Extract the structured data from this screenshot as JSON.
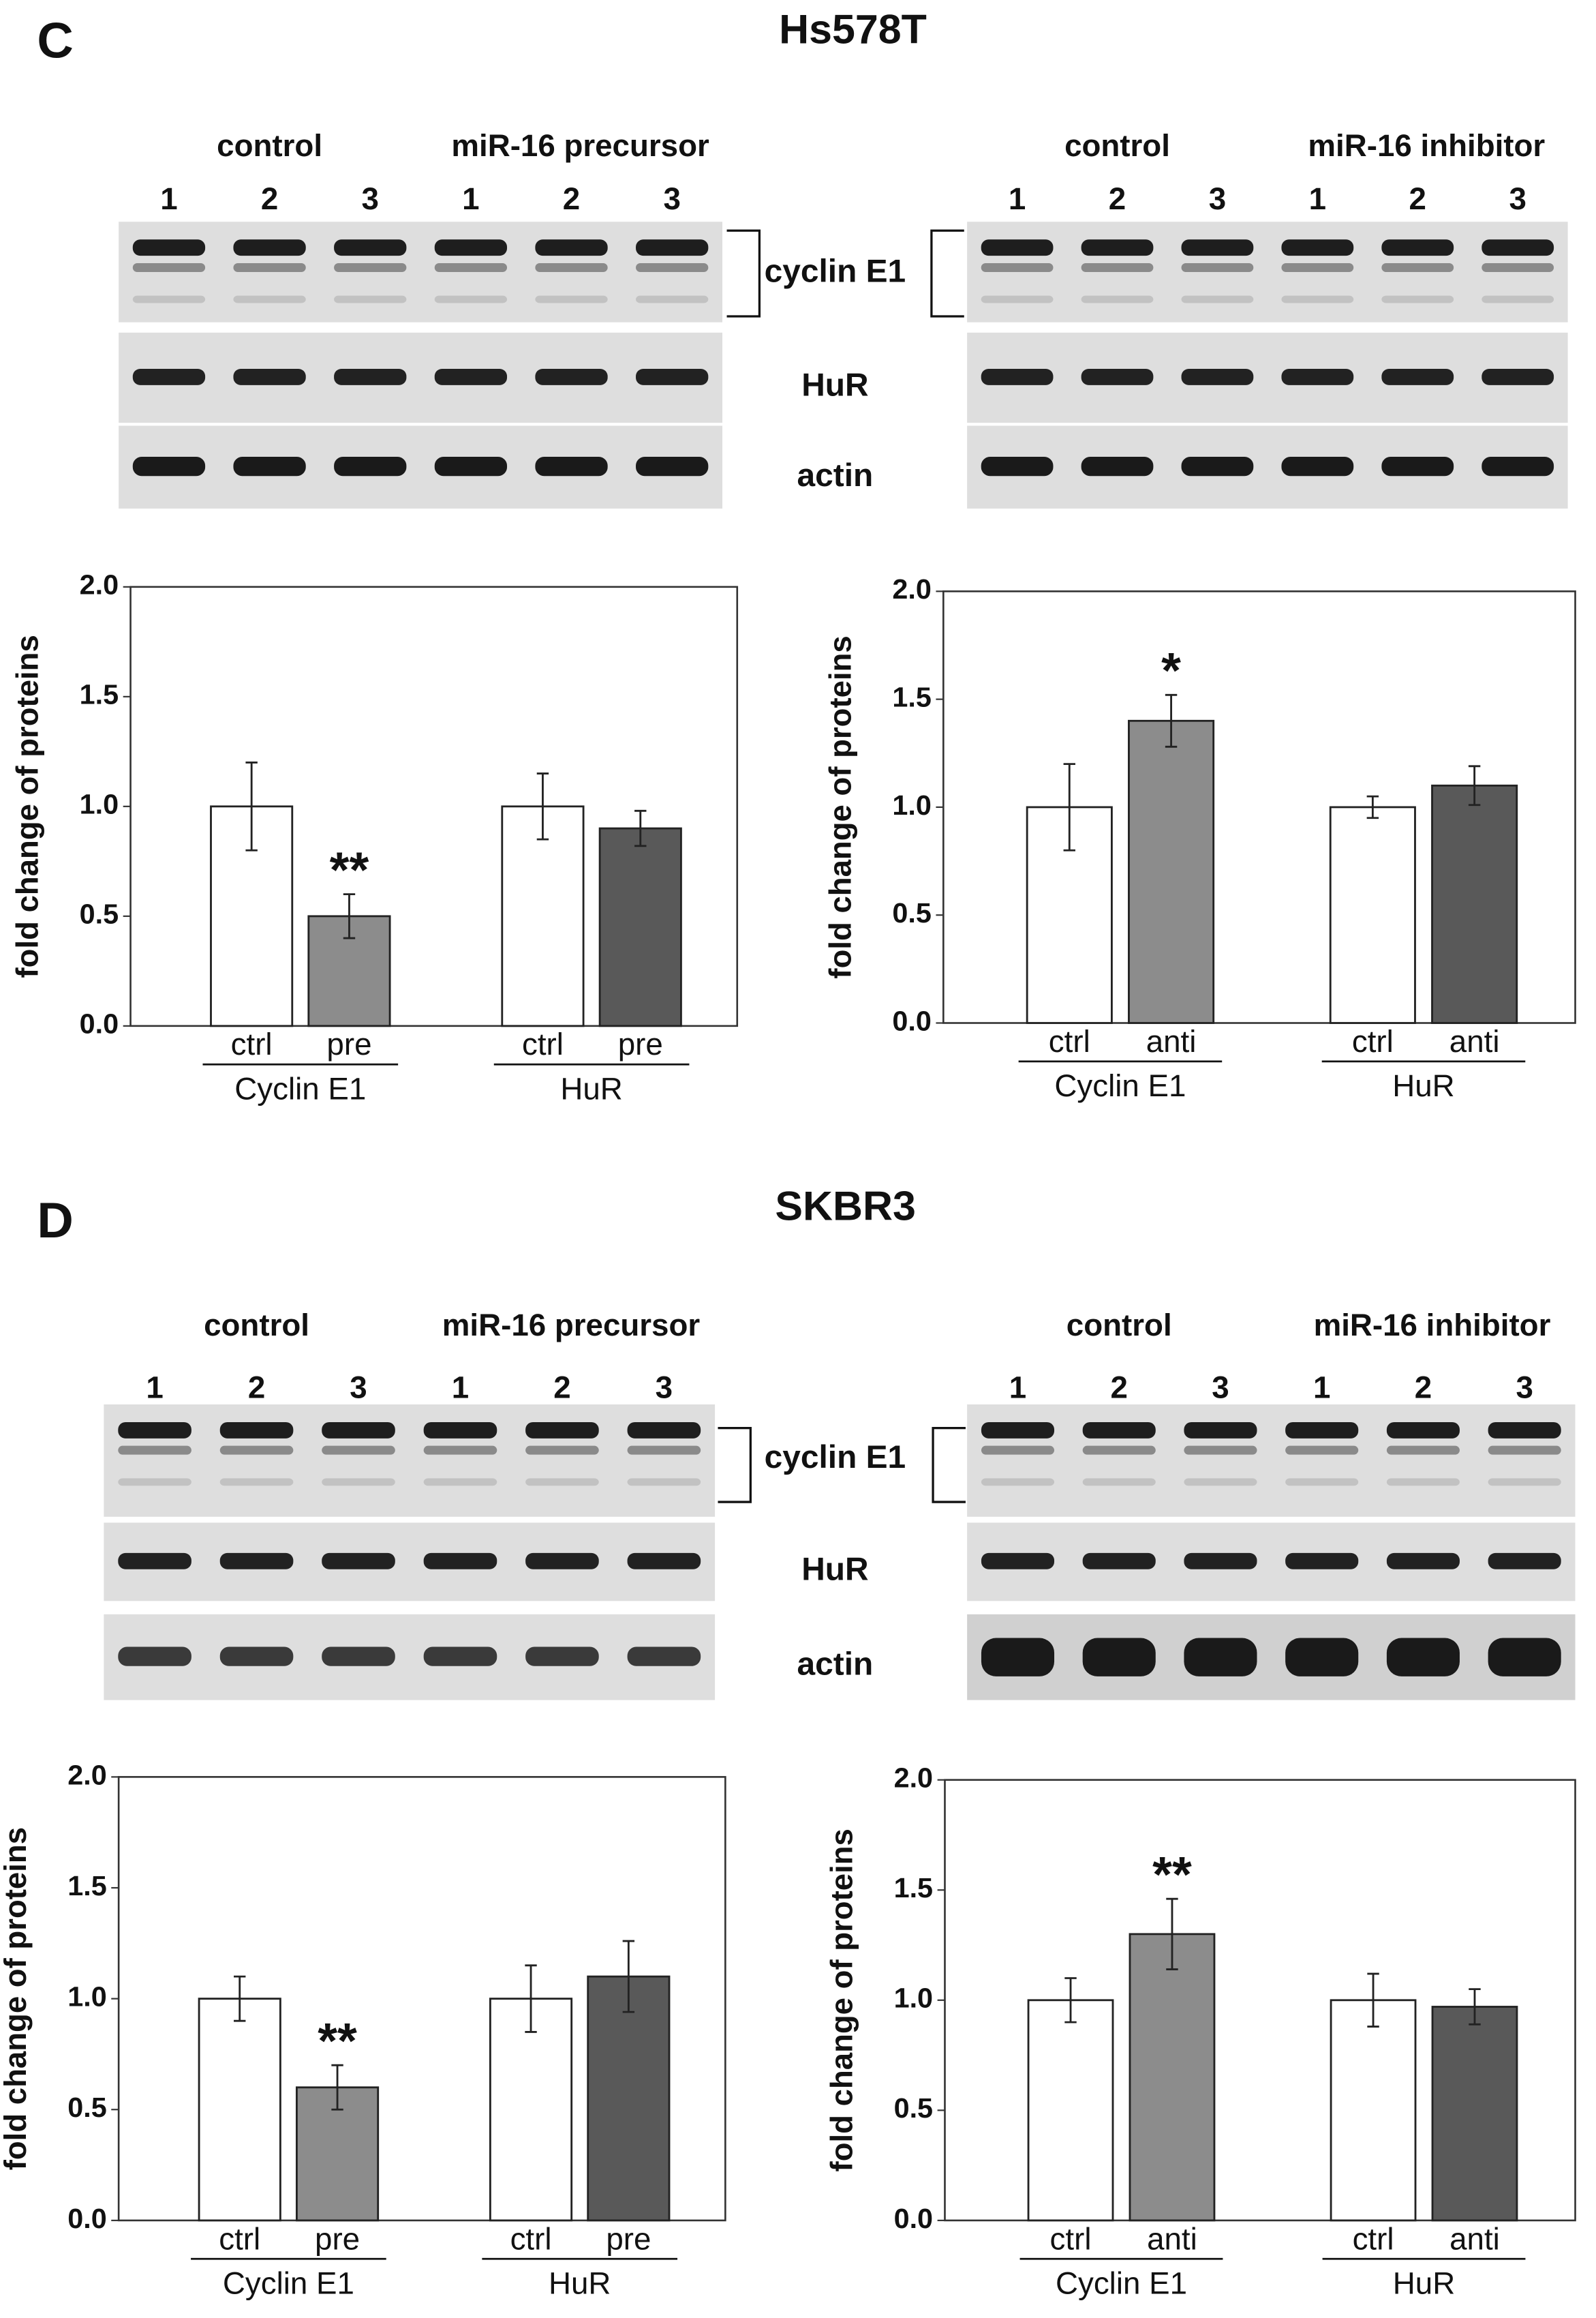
{
  "panels": [
    {
      "label": "C",
      "title": "Hs578T",
      "bands": [
        "cyclin E1",
        "HuR",
        "actin"
      ],
      "blots": [
        {
          "conditions": [
            "control",
            "miR-16 precursor"
          ],
          "lanes": [
            "1",
            "2",
            "3",
            "1",
            "2",
            "3"
          ]
        },
        {
          "conditions": [
            "control",
            "miR-16 inhibitor"
          ],
          "lanes": [
            "1",
            "2",
            "3",
            "1",
            "2",
            "3"
          ]
        }
      ]
    },
    {
      "label": "D",
      "title": "SKBR3",
      "bands": [
        "cyclin E1",
        "HuR",
        "actin"
      ],
      "blots": [
        {
          "conditions": [
            "control",
            "miR-16 precursor"
          ],
          "lanes": [
            "1",
            "2",
            "3",
            "1",
            "2",
            "3"
          ]
        },
        {
          "conditions": [
            "control",
            "miR-16 inhibitor"
          ],
          "lanes": [
            "1",
            "2",
            "3",
            "1",
            "2",
            "3"
          ]
        }
      ]
    }
  ],
  "chart_data": [
    {
      "type": "bar",
      "ylabel": "fold change of proteins",
      "ylim": [
        0,
        2
      ],
      "yticks": [
        {
          "value": 0,
          "label": "0.0"
        },
        0.5,
        {
          "value": 1,
          "label": "1.0"
        },
        1.5,
        {
          "value": 2,
          "label": "2.0"
        }
      ],
      "categories": [
        "Cyclin E1",
        "HuR"
      ],
      "series": [
        {
          "name": "ctrl",
          "colors": [
            "#ffffff",
            "#ffffff"
          ],
          "values": [
            1.0,
            1.0
          ],
          "errors": [
            0.2,
            0.15
          ],
          "labels": [
            null,
            null
          ]
        },
        {
          "name": "pre",
          "colors": [
            "#8c8c8c",
            "#595959"
          ],
          "values": [
            0.5,
            0.9
          ],
          "errors": [
            0.1,
            0.08
          ],
          "labels": [
            "**",
            null
          ]
        }
      ]
    },
    {
      "type": "bar",
      "ylabel": "fold change of proteins",
      "ylim": [
        0,
        2
      ],
      "yticks": [
        {
          "value": 0,
          "label": "0.0"
        },
        0.5,
        {
          "value": 1,
          "label": "1.0"
        },
        1.5,
        {
          "value": 2,
          "label": "2.0"
        }
      ],
      "categories": [
        "Cyclin E1",
        "HuR"
      ],
      "series": [
        {
          "name": "ctrl",
          "colors": [
            "#ffffff",
            "#ffffff"
          ],
          "values": [
            1.0,
            1.0
          ],
          "errors": [
            0.2,
            0.05
          ],
          "labels": [
            null,
            null
          ]
        },
        {
          "name": "anti",
          "colors": [
            "#8c8c8c",
            "#595959"
          ],
          "values": [
            1.4,
            1.1
          ],
          "errors": [
            0.12,
            0.09
          ],
          "labels": [
            "*",
            null
          ]
        }
      ]
    },
    {
      "type": "bar",
      "ylabel": "fold change of proteins",
      "ylim": [
        0,
        2
      ],
      "yticks": [
        {
          "value": 0,
          "label": "0.0"
        },
        0.5,
        {
          "value": 1,
          "label": "1.0"
        },
        1.5,
        {
          "value": 2,
          "label": "2.0"
        }
      ],
      "categories": [
        "Cyclin E1",
        "HuR"
      ],
      "series": [
        {
          "name": "ctrl",
          "colors": [
            "#ffffff",
            "#ffffff"
          ],
          "values": [
            1.0,
            1.0
          ],
          "errors": [
            0.1,
            0.15
          ],
          "labels": [
            null,
            null
          ]
        },
        {
          "name": "pre",
          "colors": [
            "#8c8c8c",
            "#595959"
          ],
          "values": [
            0.6,
            1.1
          ],
          "errors": [
            0.1,
            0.16
          ],
          "labels": [
            "**",
            null
          ]
        }
      ]
    },
    {
      "type": "bar",
      "ylabel": "fold change of proteins",
      "ylim": [
        0,
        2
      ],
      "yticks": [
        {
          "value": 0,
          "label": "0.0"
        },
        0.5,
        {
          "value": 1,
          "label": "1.0"
        },
        1.5,
        {
          "value": 2,
          "label": "2.0"
        }
      ],
      "categories": [
        "Cyclin E1",
        "HuR"
      ],
      "series": [
        {
          "name": "ctrl",
          "colors": [
            "#ffffff",
            "#ffffff"
          ],
          "values": [
            1.0,
            1.0
          ],
          "errors": [
            0.1,
            0.12
          ],
          "labels": [
            null,
            null
          ]
        },
        {
          "name": "anti",
          "colors": [
            "#8c8c8c",
            "#595959"
          ],
          "values": [
            1.3,
            0.97
          ],
          "errors": [
            0.16,
            0.08
          ],
          "labels": [
            "**",
            null
          ]
        }
      ]
    }
  ]
}
